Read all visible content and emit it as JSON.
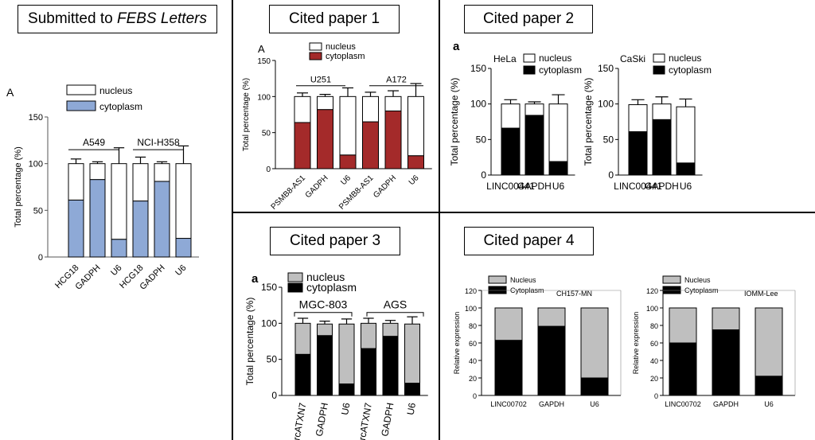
{
  "titles": {
    "submitted_prefix": "Submitted to ",
    "submitted_journal": "FEBS Letters",
    "cited1": "Cited paper 1",
    "cited2": "Cited paper 2",
    "cited3": "Cited paper 3",
    "cited4": "Cited paper 4"
  },
  "colors": {
    "blue": "#8ea9d6",
    "red": "#a42a2a",
    "black": "#000000",
    "white": "#ffffff",
    "grey": "#bfbfbf"
  },
  "chart_data": [
    {
      "id": "submitted",
      "type": "bar",
      "stacked": true,
      "panel_label": "A",
      "categories": [
        "HCG18",
        "GADPH",
        "U6",
        "HCG18",
        "GADPH",
        "U6"
      ],
      "groups": [
        "A549",
        "NCI-H358"
      ],
      "series": [
        {
          "name": "cytoplasm",
          "values": [
            61,
            83,
            19,
            60,
            81,
            20
          ],
          "errors": [
            4,
            2,
            16,
            5,
            2,
            18
          ],
          "color": "blue"
        },
        {
          "name": "nucleus",
          "values": [
            39,
            17,
            81,
            40,
            19,
            80
          ],
          "errors": [
            5,
            2,
            17,
            7,
            2,
            19
          ],
          "color": "white"
        }
      ],
      "ylabel": "Total percentage (%)",
      "ylim": [
        0,
        150
      ],
      "yticks": [
        0,
        50,
        100,
        150
      ],
      "legend": "top"
    },
    {
      "id": "cited1",
      "type": "bar",
      "stacked": true,
      "panel_label": "A",
      "categories": [
        "PSMB8-AS1",
        "GADPH",
        "U6",
        "PSMB8-AS1",
        "GADPH",
        "U6"
      ],
      "groups": [
        "U251",
        "A172"
      ],
      "series": [
        {
          "name": "cytoplasm",
          "values": [
            64,
            82,
            19,
            65,
            80,
            18
          ],
          "errors": [
            5,
            3,
            12,
            6,
            11,
            8
          ],
          "color": "red"
        },
        {
          "name": "nucleus",
          "values": [
            36,
            18,
            81,
            35,
            20,
            82
          ],
          "errors": [
            5,
            3,
            12,
            6,
            8,
            18
          ],
          "color": "white"
        }
      ],
      "ylabel": "Total percentage (%)",
      "ylim": [
        0,
        150
      ],
      "yticks": [
        0,
        50,
        100,
        150
      ],
      "legend": "top"
    },
    {
      "id": "cited2a",
      "type": "bar",
      "stacked": true,
      "panel_label": "a",
      "cell_line": "HeLa",
      "categories": [
        "LINC00441",
        "GAPDH",
        "U6"
      ],
      "series": [
        {
          "name": "cytoplasm",
          "values": [
            66,
            84,
            19
          ],
          "errors": [
            5,
            3,
            12
          ],
          "color": "black"
        },
        {
          "name": "nucleus",
          "values": [
            34,
            16,
            81
          ],
          "errors": [
            6,
            3,
            13
          ],
          "color": "white"
        }
      ],
      "ylabel": "Total percentage (%)",
      "ylim": [
        0,
        150
      ],
      "yticks": [
        0,
        50,
        100,
        150
      ],
      "legend": "top-right"
    },
    {
      "id": "cited2b",
      "type": "bar",
      "stacked": true,
      "cell_line": "CaSki",
      "categories": [
        "LINC00441",
        "GAPDH",
        "U6"
      ],
      "series": [
        {
          "name": "cytoplasm",
          "values": [
            61,
            78,
            17
          ],
          "errors": [
            5,
            12,
            10
          ],
          "color": "black"
        },
        {
          "name": "nucleus",
          "values": [
            38,
            22,
            79
          ],
          "errors": [
            7,
            10,
            11
          ],
          "color": "white"
        }
      ],
      "ylabel": "Total percentage (%)",
      "ylim": [
        0,
        150
      ],
      "yticks": [
        0,
        50,
        100,
        150
      ],
      "legend": "top-right"
    },
    {
      "id": "cited3",
      "type": "bar",
      "stacked": true,
      "panel_label": "a",
      "categories": [
        "circATXN7",
        "GADPH",
        "U6",
        "circATXN7",
        "GADPH",
        "U6"
      ],
      "groups": [
        "MGC-803",
        "AGS"
      ],
      "series": [
        {
          "name": "cytoplasm",
          "values": [
            57,
            83,
            16,
            65,
            82,
            17
          ],
          "errors": [
            7,
            3,
            7,
            6,
            3,
            9
          ],
          "color": "black"
        },
        {
          "name": "nucleus",
          "values": [
            43,
            16,
            83,
            35,
            18,
            82
          ],
          "errors": [
            7,
            4,
            7,
            7,
            4,
            10
          ],
          "color": "grey"
        }
      ],
      "ylabel": "Total percentage (%)",
      "ylim": [
        0,
        150
      ],
      "yticks": [
        0,
        50,
        100,
        150
      ],
      "legend": "top"
    },
    {
      "id": "cited4a",
      "type": "bar",
      "stacked": true,
      "cell_line": "CH157-MN",
      "categories": [
        "LINC00702",
        "GAPDH",
        "U6"
      ],
      "series": [
        {
          "name": "Cytoplasm",
          "values": [
            63,
            79,
            20
          ],
          "color": "black"
        },
        {
          "name": "Nucleus",
          "values": [
            37,
            21,
            80
          ],
          "color": "grey"
        }
      ],
      "ylabel": "Relative expression",
      "ylim": [
        0,
        120
      ],
      "yticks": [
        0,
        20,
        40,
        60,
        80,
        100,
        120
      ],
      "legend": "top-left"
    },
    {
      "id": "cited4b",
      "type": "bar",
      "stacked": true,
      "cell_line": "IOMM-Lee",
      "categories": [
        "LINC00702",
        "GAPDH",
        "U6"
      ],
      "series": [
        {
          "name": "Cytoplasm",
          "values": [
            60,
            75,
            22
          ],
          "color": "black"
        },
        {
          "name": "Nucleus",
          "values": [
            40,
            25,
            78
          ],
          "color": "grey"
        }
      ],
      "ylabel": "Relative expression",
      "ylim": [
        0,
        120
      ],
      "yticks": [
        0,
        20,
        40,
        60,
        80,
        100,
        120
      ],
      "legend": "top-left"
    }
  ]
}
